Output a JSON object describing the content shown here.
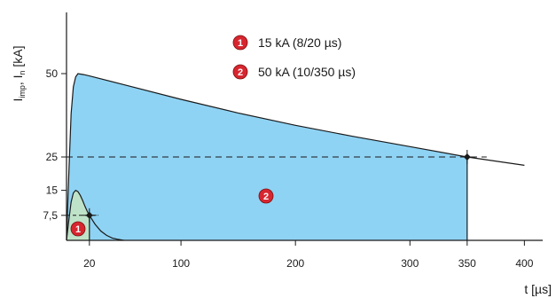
{
  "chart_data": {
    "type": "area",
    "title": "",
    "xlabel": "t [µs]",
    "ylabel": "I",
    "ylabel_sub1": "imp",
    "ylabel_mid": ", I",
    "ylabel_sub2": "n",
    "ylabel_tail": " [kA]",
    "x_ticks": [
      20,
      100,
      200,
      300,
      350,
      400
    ],
    "y_ticks": [
      7.5,
      15,
      25,
      50
    ],
    "y_tick_labels": [
      "7,5",
      "15",
      "25",
      "50"
    ],
    "xlim": [
      0,
      410
    ],
    "ylim": [
      0,
      62
    ],
    "grid": false,
    "series": [
      {
        "name": "15 kA (8/20 µs)",
        "marker": "1",
        "color": "#bfe3c8",
        "peak": 15,
        "peak_time": 8,
        "half_time": 20,
        "x": [
          0,
          2,
          4,
          6,
          8,
          10,
          12,
          14,
          16,
          18,
          20,
          25,
          30,
          35,
          40,
          45,
          50
        ],
        "values": [
          0,
          6,
          11.5,
          14.2,
          15,
          14.6,
          13.5,
          12,
          10.3,
          8.8,
          7.5,
          4.8,
          2.8,
          1.5,
          0.7,
          0.3,
          0
        ]
      },
      {
        "name": "50 kA (10/350 µs)",
        "marker": "2",
        "color": "#8fd3f4",
        "peak": 50,
        "peak_time": 10,
        "half_time": 350,
        "x": [
          0,
          2,
          4,
          6,
          8,
          10,
          15,
          20,
          50,
          100,
          150,
          200,
          250,
          300,
          350,
          400
        ],
        "values": [
          0,
          20,
          38,
          46,
          49,
          50,
          49.7,
          49.3,
          46.7,
          42.3,
          38.2,
          34.5,
          31.2,
          28.1,
          25,
          22.5
        ]
      }
    ],
    "reference_points": [
      {
        "x": 20,
        "y": 7.5
      },
      {
        "x": 350,
        "y": 25
      }
    ]
  }
}
